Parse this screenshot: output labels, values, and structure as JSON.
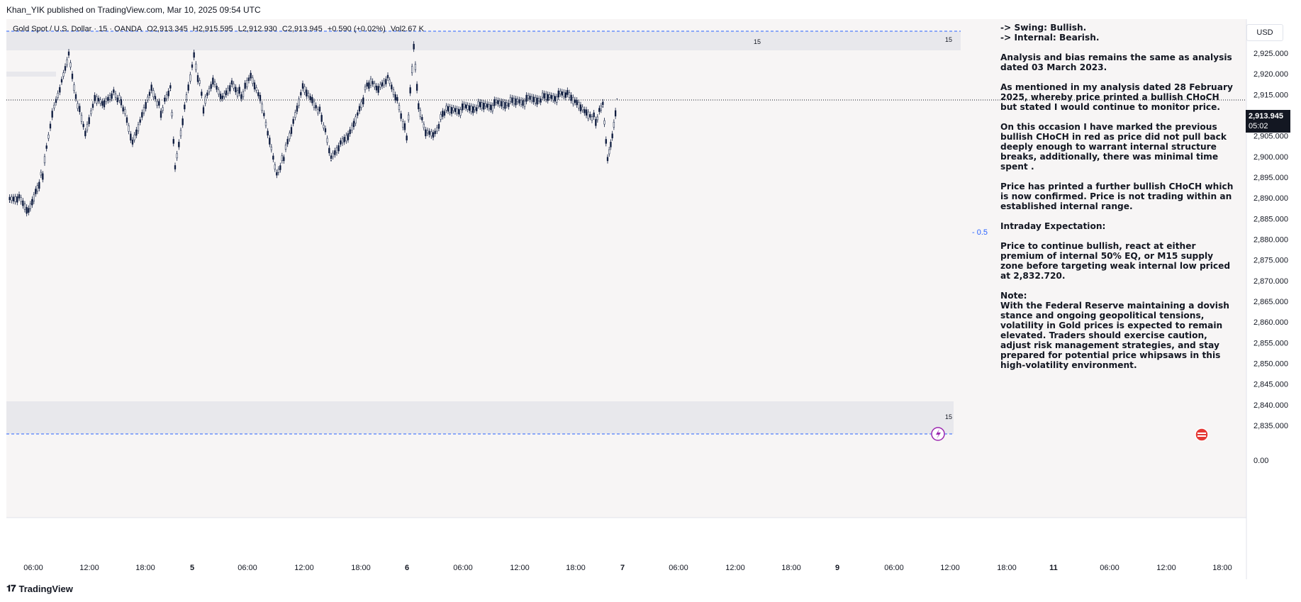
{
  "header": {
    "published": "Khan_YIK published on TradingView.com, Mar 10, 2025 09:54 UTC"
  },
  "legend": {
    "symbol": "Gold Spot / U.S. Dollar · 15 · OANDA",
    "open": "O2,913.345",
    "high": "H2,915.595",
    "low": "L2,912.930",
    "close": "C2,913.945",
    "change": "+0.590 (+0.02%)",
    "volume": "Vol2.67 K"
  },
  "currency_button": "USD",
  "price_tag": {
    "price": "2,913.945",
    "countdown": "05:02"
  },
  "zone_labels": {
    "top": "15",
    "bottom": "15",
    "swing_high": "15"
  },
  "eq_label": "- 0.5",
  "analysis": {
    "swing": "-> Swing:  Bullish.",
    "internal": "-> Internal:  Bearish.",
    "p1": "Analysis and bias remains the same as analysis dated 03 March 2023.",
    "p2": "As mentioned in my analysis dated 28 February 2025, whereby price printed a bullish CHoCH but stated I would continue to monitor price.",
    "p3": "On this occasion I have marked the previous bullish CHoCH in red as price did not pull back deeply enough to warrant internal structure breaks, additionally, there was minimal time spent .",
    "p4": "Price has printed a further bullish CHoCH which is now confirmed.  Price is not trading within an established internal range.",
    "p5": "Intraday Expectation:",
    "p6": "Price to continue bullish, react at either premium of internal 50% EQ, or M15 supply zone before targeting weak internal low priced at 2,832.720.",
    "note_title": "Note:",
    "note_body": "With the Federal Reserve maintaining a dovish stance and ongoing geopolitical tensions, volatility in Gold prices is expected to remain elevated. Traders should exercise caution, adjust risk management strategies, and stay prepared for potential price whipsaws in this high-volatility environment."
  },
  "footer": {
    "brand": "TradingView"
  },
  "colors": {
    "plot_bg": "#f7f5f5",
    "zone": "#e8e8ec",
    "candle": "#0d1b3e",
    "dashed": "#2962ff",
    "eq": "#2962ff"
  },
  "chart_data": {
    "type": "line",
    "title": "Gold Spot / U.S. Dollar · 15 · OANDA",
    "x_tick_labels": [
      "06:00",
      "12:00",
      "18:00",
      "5",
      "06:00",
      "12:00",
      "18:00",
      "6",
      "06:00",
      "12:00",
      "18:00",
      "7",
      "06:00",
      "12:00",
      "18:00",
      "9",
      "06:00",
      "12:00",
      "18:00",
      "11",
      "06:00",
      "12:00",
      "18:00"
    ],
    "y_tick_labels": [
      "2,925.000",
      "2,920.000",
      "2,915.000",
      "2,910.000",
      "2,905.000",
      "2,900.000",
      "2,895.000",
      "2,890.000",
      "2,885.000",
      "2,880.000",
      "2,875.000",
      "2,870.000",
      "2,865.000",
      "2,860.000",
      "2,855.000",
      "2,850.000",
      "2,845.000",
      "2,840.000",
      "2,835.000"
    ],
    "volume_tick": "0.00",
    "ylim": [
      2832,
      2930
    ],
    "series": [
      {
        "x": [
          "03-04 01:00",
          "03-04 03:00",
          "03-04 05:00",
          "03-04 06:30",
          "03-04 08:00",
          "03-04 10:00",
          "03-04 12:00",
          "03-04 13:30",
          "03-04 15:00",
          "03-04 17:00",
          "03-04 19:00",
          "03-04 21:00",
          "03-04 23:00",
          "03-05 01:00",
          "03-05 03:00",
          "03-05 05:00",
          "03-05 07:00",
          "03-05 09:00",
          "03-05 11:00",
          "03-05 12:00",
          "03-05 14:00",
          "03-05 16:00",
          "03-05 18:00",
          "03-05 20:00",
          "03-05 22:00",
          "03-06 00:00",
          "03-06 02:00",
          "03-06 04:00",
          "03-06 06:00",
          "03-06 08:00",
          "03-06 09:30",
          "03-06 11:00",
          "03-06 13:00",
          "03-06 15:00",
          "03-06 17:00",
          "03-06 19:00",
          "03-06 21:00",
          "03-06 23:00",
          "03-07 01:00",
          "03-07 03:00",
          "03-07 05:00",
          "03-07 07:00",
          "03-07 09:00",
          "03-07 11:00",
          "03-07 13:00",
          "03-07 14:30",
          "03-07 15:30",
          "03-07 17:00",
          "03-07 19:00",
          "03-07 21:00",
          "03-09 23:00",
          "03-10 01:00",
          "03-10 03:00",
          "03-10 05:00",
          "03-10 06:30",
          "03-10 07:30",
          "03-10 08:30",
          "03-10 09:30"
        ],
        "values": [
          2889,
          2890,
          2887,
          2892,
          2896,
          2910,
          2918,
          2925,
          2915,
          2905,
          2914,
          2913,
          2916,
          2912,
          2903,
          2910,
          2917,
          2911,
          2916,
          2897,
          2912,
          2925,
          2912,
          2918,
          2914,
          2918,
          2915,
          2919,
          2914,
          2904,
          2896,
          2900,
          2908,
          2917,
          2914,
          2910,
          2899,
          2903,
          2906,
          2912,
          2918,
          2916,
          2919,
          2914,
          2905,
          2926,
          2912,
          2906,
          2906,
          2911,
          2915,
          2913,
          2911,
          2909,
          2912,
          2899,
          2905,
          2913.945
        ]
      }
    ],
    "annotations": [
      "15",
      "15",
      "15",
      "- 0.5"
    ]
  }
}
